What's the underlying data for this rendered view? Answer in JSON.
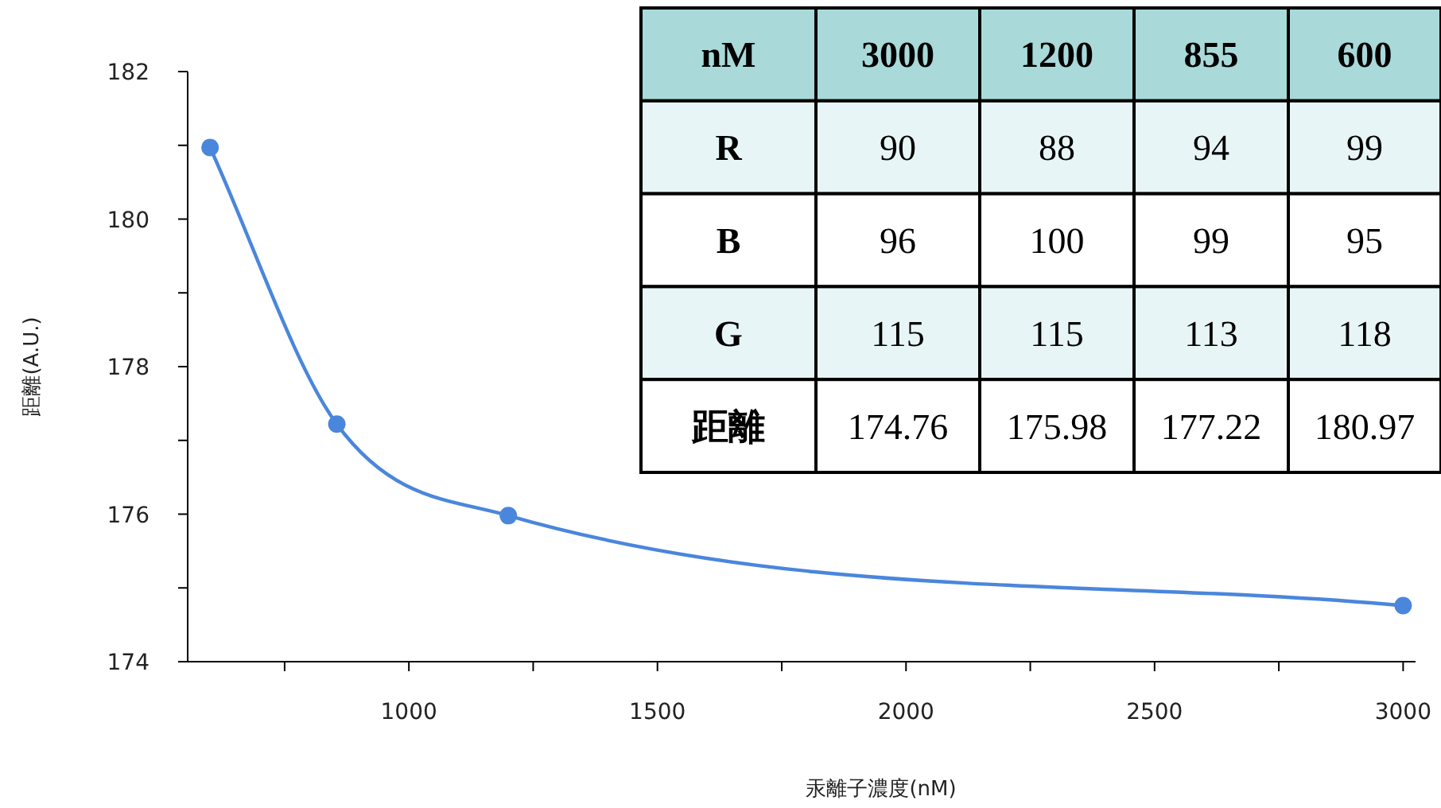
{
  "chart_data": [
    {
      "type": "line",
      "xlabel": "汞離子濃度(nM)",
      "ylabel": "距離(A.U.)",
      "marker": "circle",
      "line_style": "solid",
      "x": [
        600,
        855,
        1200,
        3000
      ],
      "series": [
        {
          "color": "#4a86dc",
          "values": [
            180.97,
            177.22,
            175.98,
            174.76
          ]
        }
      ],
      "xlim": [
        555,
        3025
      ],
      "ylim": [
        174,
        182
      ],
      "xticks": [
        {
          "value": 750,
          "label": null
        },
        1000,
        {
          "value": 1250,
          "label": null
        },
        1500,
        {
          "value": 1750,
          "label": null
        },
        2000,
        {
          "value": 2250,
          "label": null
        },
        2500,
        {
          "value": 2750,
          "label": null
        },
        3000
      ],
      "yticks": [
        174,
        {
          "value": 175,
          "label": null
        },
        176,
        {
          "value": 177,
          "label": null
        },
        178,
        {
          "value": 179,
          "label": null
        },
        180,
        {
          "value": 181,
          "label": null
        },
        182
      ]
    },
    {
      "type": "heatmap",
      "data_labels": true,
      "xlabel": "nM",
      "categories": [
        "3000",
        "1200",
        "855",
        "600"
      ],
      "y_categories": [
        "R",
        "B",
        "G",
        "距離"
      ],
      "cells": [
        [
          90,
          88,
          94,
          99
        ],
        [
          96,
          100,
          99,
          95
        ],
        [
          115,
          115,
          113,
          118
        ],
        [
          174.76,
          175.98,
          177.22,
          180.97
        ]
      ]
    }
  ]
}
